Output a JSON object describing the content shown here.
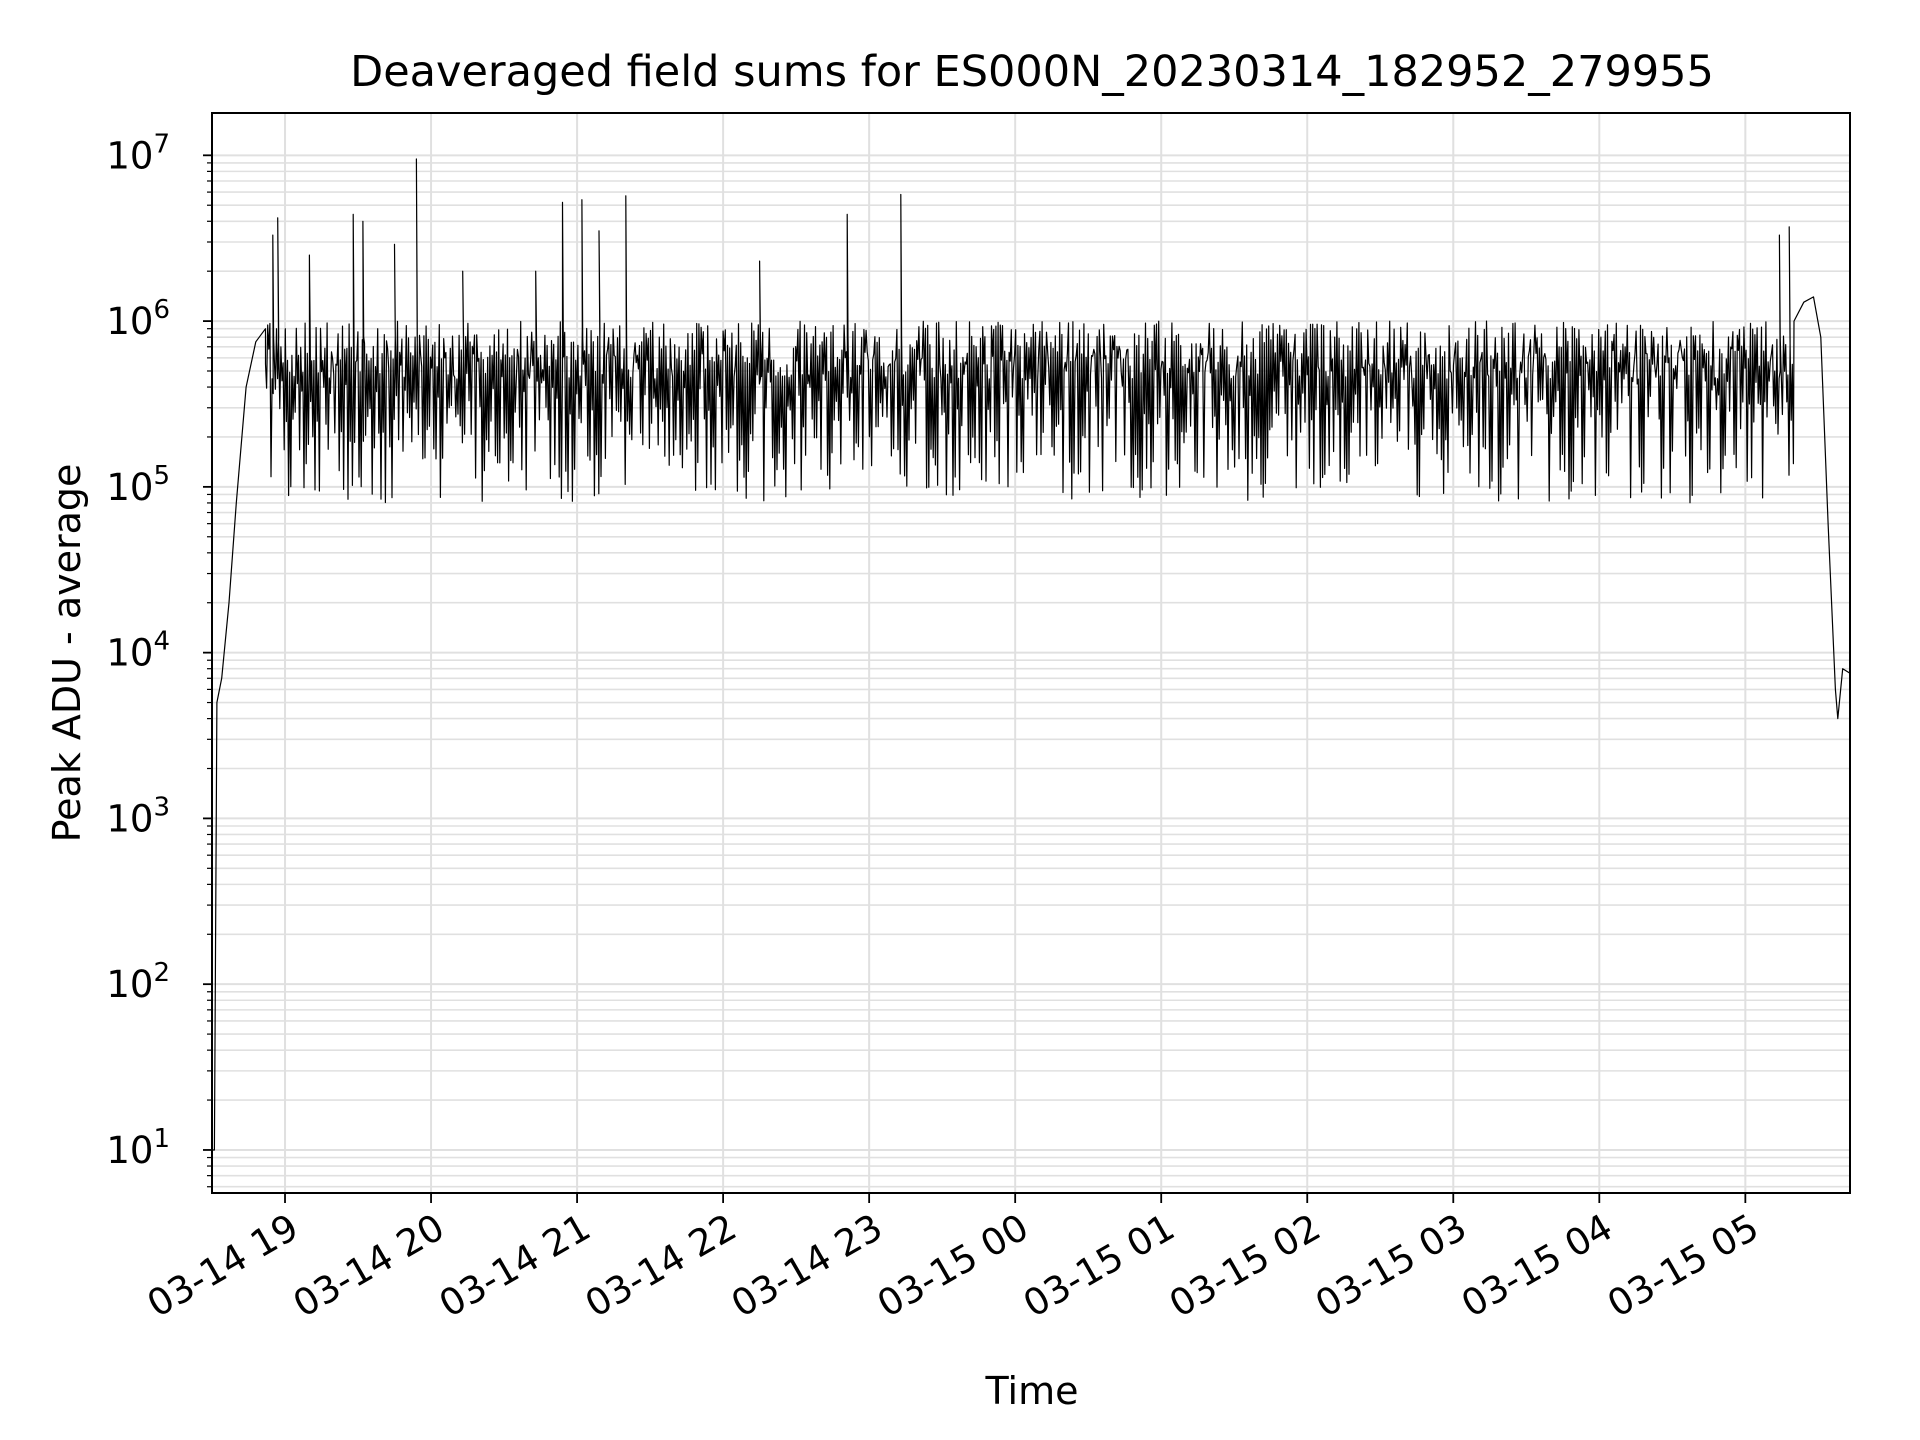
{
  "chart_data": {
    "type": "line",
    "title": "Deaveraged field sums for ES000N_20230314_182952_279955",
    "xlabel": "Time",
    "ylabel": "Peak ADU - average",
    "y_scale": "log",
    "ylim": [
      5.5,
      18000000
    ],
    "xlim": [
      "2023-03-14 18:30",
      "2023-03-15 05:43"
    ],
    "grid": true,
    "line_color": "#000000",
    "grid_color": "#e0e0e0",
    "x_ticks": [
      {
        "at": "2023-03-14 19:00",
        "label": "03-14 19"
      },
      {
        "at": "2023-03-14 20:00",
        "label": "03-14 20"
      },
      {
        "at": "2023-03-14 21:00",
        "label": "03-14 21"
      },
      {
        "at": "2023-03-14 22:00",
        "label": "03-14 22"
      },
      {
        "at": "2023-03-14 23:00",
        "label": "03-14 23"
      },
      {
        "at": "2023-03-15 00:00",
        "label": "03-15 00"
      },
      {
        "at": "2023-03-15 01:00",
        "label": "03-15 01"
      },
      {
        "at": "2023-03-15 02:00",
        "label": "03-15 02"
      },
      {
        "at": "2023-03-15 03:00",
        "label": "03-15 03"
      },
      {
        "at": "2023-03-15 04:00",
        "label": "03-15 04"
      },
      {
        "at": "2023-03-15 05:00",
        "label": "03-15 05"
      }
    ],
    "y_ticks": [
      {
        "value": 10,
        "base": "10",
        "exp": "1"
      },
      {
        "value": 100,
        "base": "10",
        "exp": "2"
      },
      {
        "value": 1000,
        "base": "10",
        "exp": "3"
      },
      {
        "value": 10000,
        "base": "10",
        "exp": "4"
      },
      {
        "value": 100000,
        "base": "10",
        "exp": "5"
      },
      {
        "value": 1000000,
        "base": "10",
        "exp": "6"
      },
      {
        "value": 10000000,
        "base": "10",
        "exp": "7"
      }
    ],
    "series": [
      {
        "points": [
          [
            "2023-03-14 18:30",
            10
          ],
          [
            "2023-03-14 18:31",
            10
          ],
          [
            "2023-03-14 18:32",
            5000
          ],
          [
            "2023-03-14 18:34",
            7000
          ],
          [
            "2023-03-14 18:37",
            20000
          ],
          [
            "2023-03-14 18:40",
            80000
          ],
          [
            "2023-03-14 18:44",
            400000
          ],
          [
            "2023-03-14 18:48",
            750000
          ],
          [
            "2023-03-14 18:52",
            900000
          ],
          [
            "2023-03-15 05:20",
            1000000
          ],
          [
            "2023-03-15 05:24",
            1300000
          ],
          [
            "2023-03-15 05:28",
            1400000
          ],
          [
            "2023-03-15 05:31",
            800000
          ],
          [
            "2023-03-15 05:34",
            60000
          ],
          [
            "2023-03-15 05:37",
            6000
          ],
          [
            "2023-03-15 05:38",
            4000
          ],
          [
            "2023-03-15 05:40",
            8000
          ],
          [
            "2023-03-15 05:43",
            7500
          ]
        ],
        "noisy_band": {
          "from": "2023-03-14 18:52",
          "to": "2023-03-15 05:20",
          "high": 1000000,
          "low": 80000
        },
        "spikes": [
          [
            "2023-03-14 18:55",
            3300000
          ],
          [
            "2023-03-14 18:57",
            4200000
          ],
          [
            "2023-03-14 19:10",
            2500000
          ],
          [
            "2023-03-14 19:28",
            4400000
          ],
          [
            "2023-03-14 19:32",
            4000000
          ],
          [
            "2023-03-14 19:45",
            2900000
          ],
          [
            "2023-03-14 19:54",
            9500000
          ],
          [
            "2023-03-14 20:13",
            2000000
          ],
          [
            "2023-03-14 20:43",
            2000000
          ],
          [
            "2023-03-14 20:54",
            5200000
          ],
          [
            "2023-03-14 21:02",
            5400000
          ],
          [
            "2023-03-14 21:09",
            3500000
          ],
          [
            "2023-03-14 21:20",
            5700000
          ],
          [
            "2023-03-14 22:15",
            2300000
          ],
          [
            "2023-03-14 22:51",
            4400000
          ],
          [
            "2023-03-14 23:13",
            5800000
          ],
          [
            "2023-03-15 05:14",
            3300000
          ],
          [
            "2023-03-15 05:18",
            3700000
          ]
        ]
      }
    ]
  }
}
